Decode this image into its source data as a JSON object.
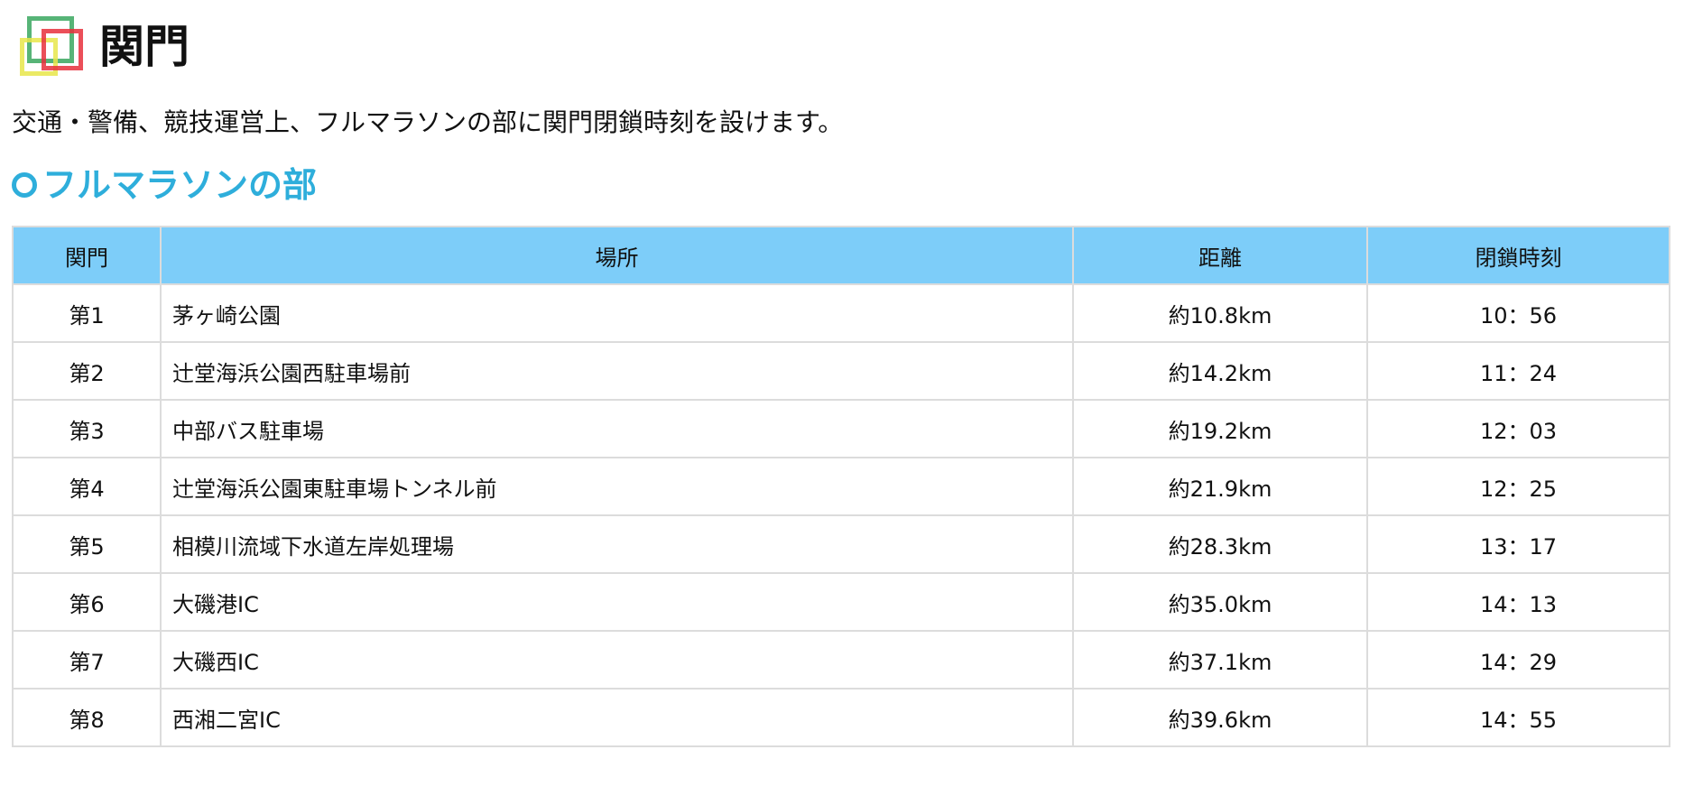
{
  "header": {
    "logo_icon": "overlapping-squares-logo",
    "title": "関門"
  },
  "lead": "交通・警備、競技運営上、フルマラソンの部に関門閉鎖時刻を設けます。",
  "section": {
    "title": "フルマラソンの部",
    "icon": "circle-icon",
    "color": "#2eaedb"
  },
  "table": {
    "header_color": "#7dcdf9",
    "columns": [
      "関門",
      "場所",
      "距離",
      "閉鎖時刻"
    ],
    "rows": [
      [
        "第1",
        "茅ヶ崎公園",
        "約10.8km",
        "10：56"
      ],
      [
        "第2",
        "辻堂海浜公園西駐車場前",
        "約14.2km",
        "11：24"
      ],
      [
        "第3",
        "中部バス駐車場",
        "約19.2km",
        "12：03"
      ],
      [
        "第4",
        "辻堂海浜公園東駐車場トンネル前",
        "約21.9km",
        "12：25"
      ],
      [
        "第5",
        "相模川流域下水道左岸処理場",
        "約28.3km",
        "13：17"
      ],
      [
        "第6",
        "大磯港IC",
        "約35.0km",
        "14：13"
      ],
      [
        "第7",
        "大磯西IC",
        "約37.1km",
        "14：29"
      ],
      [
        "第8",
        "西湘二宮IC",
        "約39.6km",
        "14：55"
      ]
    ]
  }
}
